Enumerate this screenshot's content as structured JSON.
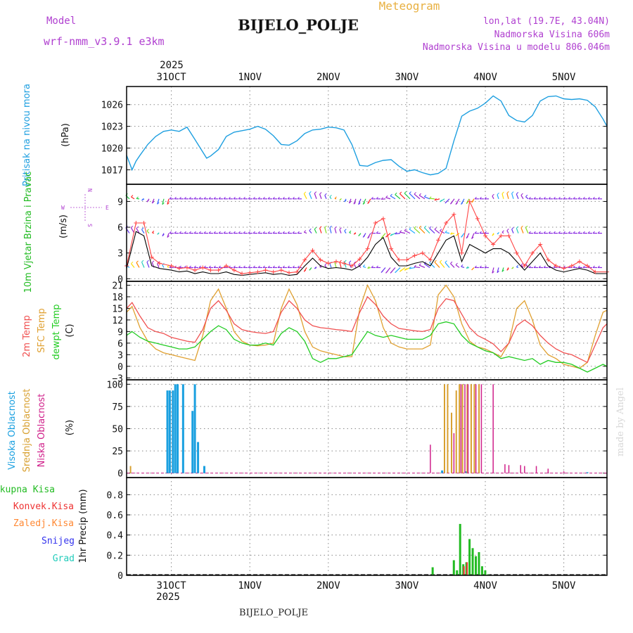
{
  "header": {
    "app_title": "Meteogram",
    "station": "BIJELO_POLJE",
    "model_label": "Model",
    "model_name": "wrf-nmm_v3.9.1 e3km",
    "coords": "lon,lat (19.7E, 43.04N)",
    "elevation": "Nadmorska Visina 606m",
    "model_elevation": "Nadmorska Visina u modelu 806.046m",
    "footer_station": "BIJELO_POLJE",
    "credit": "made by Angel"
  },
  "time_axis": {
    "year": "2025",
    "ticks": [
      "31OCT",
      "1NOV",
      "2NOV",
      "3NOV",
      "4NOV",
      "5NOV"
    ],
    "start_day_offset": -0.57,
    "end_day_offset": 5.55
  },
  "colors": {
    "pressure": "#1e9fe0",
    "wind_speed_legend": "#22bb22",
    "wind_speed_line": "#000000",
    "gust": "#ff4444",
    "temp_2m": "#f05050",
    "temp_sfc": "#e0a030",
    "dewpoint": "#22cc22",
    "cloud_high": "#1aa0e0",
    "cloud_mid": "#d8a030",
    "cloud_low": "#d0208a",
    "precip_total": "#22bb22",
    "precip_conv": "#ee3333",
    "precip_frz": "#ff8833",
    "precip_snow": "#3333ee",
    "precip_grad": "#22ccbb",
    "grid": "#888888",
    "title_purple": "#b040d0",
    "title_orange": "#e8b040"
  },
  "chart_data": [
    {
      "type": "line",
      "panel": "pressure",
      "ylabel_colored": "Pritisak na nivou mora",
      "ylabel_unit": "(hPa)",
      "ylim": [
        1015,
        1028.5
      ],
      "yticks": [
        1017,
        1020,
        1023,
        1026
      ],
      "x_days": [
        -0.57,
        -0.5,
        -0.45,
        -0.4,
        -0.3,
        -0.2,
        -0.1,
        0,
        0.1,
        0.2,
        0.3,
        0.45,
        0.5,
        0.6,
        0.7,
        0.8,
        0.9,
        1.0,
        1.1,
        1.2,
        1.3,
        1.4,
        1.5,
        1.6,
        1.7,
        1.8,
        1.9,
        2.0,
        2.1,
        2.2,
        2.3,
        2.4,
        2.5,
        2.6,
        2.7,
        2.8,
        2.9,
        3.0,
        3.1,
        3.2,
        3.3,
        3.4,
        3.5,
        3.6,
        3.7,
        3.8,
        3.9,
        4.0,
        4.1,
        4.2,
        4.3,
        4.4,
        4.5,
        4.6,
        4.7,
        4.8,
        4.9,
        5.0,
        5.1,
        5.2,
        5.3,
        5.4,
        5.5,
        5.55
      ],
      "series": [
        {
          "name": "MSLP",
          "values": [
            1019.0,
            1017.0,
            1018.2,
            1019.0,
            1020.5,
            1021.6,
            1022.3,
            1022.5,
            1022.3,
            1022.9,
            1021.2,
            1018.6,
            1018.9,
            1019.8,
            1021.6,
            1022.2,
            1022.4,
            1022.6,
            1023.0,
            1022.6,
            1021.7,
            1020.5,
            1020.4,
            1021.0,
            1022.0,
            1022.5,
            1022.6,
            1022.9,
            1022.8,
            1022.5,
            1020.5,
            1017.6,
            1017.5,
            1018.0,
            1018.3,
            1018.4,
            1017.5,
            1016.8,
            1017.0,
            1016.6,
            1016.3,
            1016.5,
            1017.2,
            1021.0,
            1024.4,
            1025.1,
            1025.5,
            1026.2,
            1027.2,
            1026.5,
            1024.5,
            1023.8,
            1023.6,
            1024.5,
            1026.5,
            1027.1,
            1027.2,
            1026.8,
            1026.7,
            1026.8,
            1026.6,
            1025.7,
            1024.0,
            1023.0
          ]
        }
      ]
    },
    {
      "type": "line",
      "panel": "wind",
      "ylabel_colored": "10m Vjetar Brzina i Pravac",
      "ylabel_unit": "(m/s)",
      "compass": [
        "W",
        "E",
        "N",
        "S"
      ],
      "ylim": [
        -0.3,
        11
      ],
      "yticks": [
        0,
        3,
        6,
        9
      ],
      "barb_levels_ms": [
        1.3,
        5.3,
        9.3
      ],
      "x_days": [
        -0.57,
        -0.45,
        -0.35,
        -0.25,
        -0.15,
        0,
        0.1,
        0.2,
        0.3,
        0.4,
        0.5,
        0.6,
        0.7,
        0.8,
        0.9,
        1.0,
        1.1,
        1.2,
        1.3,
        1.4,
        1.5,
        1.6,
        1.7,
        1.8,
        1.9,
        2.0,
        2.1,
        2.2,
        2.3,
        2.4,
        2.5,
        2.6,
        2.7,
        2.8,
        2.9,
        3.0,
        3.1,
        3.2,
        3.3,
        3.4,
        3.5,
        3.6,
        3.7,
        3.8,
        3.9,
        4.0,
        4.1,
        4.2,
        4.3,
        4.4,
        4.5,
        4.6,
        4.7,
        4.8,
        4.9,
        5.0,
        5.1,
        5.2,
        5.3,
        5.4,
        5.55
      ],
      "series": [
        {
          "name": "Wind speed",
          "values": [
            1.2,
            5.5,
            5.0,
            1.5,
            1.2,
            1.0,
            0.8,
            0.9,
            0.6,
            0.8,
            0.6,
            0.6,
            0.8,
            0.5,
            0.4,
            0.5,
            0.6,
            0.7,
            0.5,
            0.6,
            0.4,
            0.5,
            1.5,
            2.4,
            1.5,
            1.2,
            1.3,
            1.2,
            1.0,
            1.5,
            2.5,
            4.0,
            4.8,
            2.5,
            1.5,
            1.5,
            1.8,
            2.0,
            1.5,
            3.0,
            4.5,
            5.0,
            2.0,
            4.0,
            3.5,
            3.0,
            3.5,
            3.5,
            3.0,
            2.0,
            1.0,
            2.0,
            3.0,
            1.5,
            1.0,
            0.8,
            1.0,
            1.2,
            1.0,
            0.6,
            0.6
          ]
        },
        {
          "name": "Gust",
          "values": [
            1.5,
            6.5,
            6.5,
            2.5,
            1.8,
            1.5,
            1.2,
            1.3,
            1.0,
            1.3,
            1.0,
            1.0,
            1.5,
            1.0,
            0.6,
            0.7,
            0.8,
            1.0,
            0.8,
            1.0,
            0.7,
            0.8,
            2.2,
            3.3,
            2.2,
            1.8,
            2.0,
            1.8,
            1.5,
            2.3,
            3.5,
            6.5,
            7.0,
            3.5,
            2.2,
            2.2,
            2.7,
            3.0,
            2.2,
            4.5,
            6.5,
            7.5,
            3.0,
            9.0,
            7.0,
            5.0,
            4.0,
            5.0,
            5.0,
            3.0,
            1.5,
            3.0,
            4.0,
            2.2,
            1.5,
            1.2,
            1.5,
            2.0,
            1.5,
            0.8,
            0.8
          ]
        }
      ]
    },
    {
      "type": "line",
      "panel": "temperature",
      "ylabel_2m": "2m Temp",
      "ylabel_sfc": "SFC Temp",
      "ylabel_dew": "dewpt Temp",
      "ylabel_unit": "(C)",
      "ylim": [
        -3.5,
        22
      ],
      "yticks": [
        -3,
        0,
        3,
        6,
        9,
        12,
        15,
        18,
        21
      ],
      "x_days": [
        -0.57,
        -0.5,
        -0.4,
        -0.3,
        -0.2,
        -0.1,
        0,
        0.1,
        0.2,
        0.3,
        0.4,
        0.5,
        0.6,
        0.7,
        0.8,
        0.9,
        1.0,
        1.1,
        1.2,
        1.3,
        1.4,
        1.5,
        1.6,
        1.7,
        1.8,
        1.9,
        2.0,
        2.1,
        2.2,
        2.3,
        2.4,
        2.5,
        2.6,
        2.7,
        2.8,
        2.9,
        3.0,
        3.1,
        3.2,
        3.3,
        3.4,
        3.5,
        3.6,
        3.7,
        3.8,
        3.9,
        4.0,
        4.1,
        4.2,
        4.3,
        4.4,
        4.5,
        4.6,
        4.7,
        4.8,
        4.9,
        5.0,
        5.1,
        5.2,
        5.3,
        5.4,
        5.5,
        5.55
      ],
      "series": [
        {
          "name": "2m Temp",
          "values": [
            15.0,
            16.5,
            13.0,
            10.0,
            9.0,
            8.5,
            7.5,
            7.0,
            6.5,
            6.2,
            9.5,
            15.0,
            17.0,
            14.5,
            11.0,
            9.5,
            9.0,
            8.7,
            8.5,
            9.0,
            14.0,
            17.0,
            15.0,
            12.0,
            10.5,
            10.0,
            9.8,
            9.5,
            9.3,
            9.0,
            14.0,
            18.0,
            16.0,
            13.0,
            11.0,
            9.8,
            9.5,
            9.2,
            9.0,
            9.5,
            15.0,
            17.5,
            17.0,
            13.5,
            10.0,
            8.0,
            7.0,
            5.8,
            3.8,
            6.0,
            10.5,
            12.0,
            10.5,
            8.0,
            6.0,
            4.5,
            3.5,
            3.0,
            2.0,
            1.0,
            5.5,
            10.0,
            11.0
          ]
        },
        {
          "name": "SFC Temp",
          "values": [
            14.0,
            15.5,
            10.0,
            6.5,
            4.5,
            3.5,
            3.0,
            2.5,
            2.0,
            1.5,
            8.0,
            17.0,
            20.0,
            15.0,
            9.0,
            6.5,
            5.5,
            5.3,
            5.5,
            6.0,
            15.0,
            20.0,
            16.0,
            9.0,
            5.0,
            4.0,
            3.5,
            3.0,
            2.5,
            2.5,
            15.0,
            21.0,
            17.0,
            10.0,
            6.0,
            5.0,
            4.5,
            4.5,
            4.5,
            5.5,
            18.5,
            21.0,
            18.0,
            11.0,
            6.5,
            5.0,
            4.5,
            3.5,
            2.5,
            6.0,
            15.0,
            17.0,
            12.0,
            5.5,
            3.0,
            2.0,
            0.5,
            0.0,
            -0.5,
            1.0,
            8.0,
            14.0,
            14.5
          ]
        },
        {
          "name": "Dewpoint",
          "values": [
            8.0,
            9.0,
            7.5,
            6.5,
            6.0,
            5.5,
            5.0,
            4.5,
            4.5,
            5.0,
            7.0,
            9.0,
            10.5,
            9.5,
            7.0,
            6.0,
            5.5,
            5.5,
            6.0,
            5.5,
            8.5,
            10.0,
            9.0,
            6.5,
            2.0,
            1.0,
            2.0,
            2.0,
            2.5,
            3.0,
            6.0,
            9.0,
            8.0,
            7.5,
            8.0,
            7.5,
            7.0,
            7.0,
            7.0,
            8.0,
            11.0,
            11.5,
            11.0,
            8.0,
            6.0,
            5.0,
            4.0,
            3.5,
            2.0,
            2.5,
            2.0,
            1.5,
            2.0,
            0.5,
            1.5,
            1.0,
            1.0,
            0.5,
            -0.5,
            -1.5,
            -0.5,
            0.5,
            0.0
          ]
        }
      ]
    },
    {
      "type": "bar",
      "panel": "cloud",
      "ylabel_high": "Visoka Oblacnost",
      "ylabel_mid": "Srednja Oblacnost",
      "ylabel_low": "Niska Oblacnost",
      "ylabel_unit": "(%)",
      "ylim": [
        -5,
        105
      ],
      "yticks": [
        0,
        25,
        50,
        75,
        100
      ],
      "series": [
        {
          "name": "High",
          "points": [
            [
              -0.05,
              93
            ],
            [
              -0.02,
              93
            ],
            [
              0.02,
              93
            ],
            [
              0.05,
              100
            ],
            [
              0.08,
              100
            ],
            [
              0.15,
              100
            ],
            [
              0.27,
              70
            ],
            [
              0.3,
              100
            ],
            [
              0.34,
              35
            ],
            [
              0.42,
              8
            ],
            [
              3.45,
              3
            ],
            [
              3.75,
              2
            ],
            [
              5.3,
              1
            ]
          ]
        },
        {
          "name": "Mid",
          "points": [
            [
              -0.52,
              8
            ],
            [
              3.48,
              100
            ],
            [
              3.52,
              100
            ],
            [
              3.57,
              68
            ],
            [
              3.63,
              93
            ],
            [
              3.67,
              100
            ],
            [
              3.71,
              100
            ],
            [
              3.77,
              100
            ],
            [
              3.82,
              100
            ],
            [
              3.86,
              100
            ],
            [
              3.92,
              100
            ]
          ]
        },
        {
          "name": "Low",
          "points": [
            [
              3.3,
              32
            ],
            [
              3.6,
              45
            ],
            [
              3.69,
              100
            ],
            [
              3.74,
              100
            ],
            [
              3.78,
              100
            ],
            [
              3.88,
              100
            ],
            [
              3.95,
              100
            ],
            [
              4.1,
              100
            ],
            [
              4.25,
              10
            ],
            [
              4.3,
              9
            ],
            [
              4.45,
              9
            ],
            [
              4.5,
              8
            ],
            [
              4.65,
              8
            ],
            [
              4.8,
              5
            ],
            [
              5.0,
              2
            ]
          ]
        }
      ]
    },
    {
      "type": "bar",
      "panel": "precip",
      "legend": [
        "Ukupna Kisa",
        "Konvek.Kisa",
        "Zaledj.Kisa",
        "Snijeg",
        "Grad"
      ],
      "ylabel": "1hr Precip (mm)",
      "ylim": [
        0,
        0.97
      ],
      "yticks": [
        0,
        0.2,
        0.4,
        0.6,
        0.8
      ],
      "series": [
        {
          "name": "Ukupna Kisa",
          "points": [
            [
              3.33,
              0.08
            ],
            [
              3.6,
              0.15
            ],
            [
              3.64,
              0.05
            ],
            [
              3.68,
              0.51
            ],
            [
              3.72,
              0.11
            ],
            [
              3.76,
              0.13
            ],
            [
              3.8,
              0.36
            ],
            [
              3.84,
              0.27
            ],
            [
              3.88,
              0.19
            ],
            [
              3.92,
              0.23
            ],
            [
              3.96,
              0.09
            ],
            [
              4.0,
              0.05
            ],
            [
              4.04,
              0.01
            ]
          ]
        },
        {
          "name": "Konvek.Kisa",
          "points": [
            [
              3.72,
              0.09
            ],
            [
              3.76,
              0.13
            ]
          ]
        }
      ]
    }
  ]
}
